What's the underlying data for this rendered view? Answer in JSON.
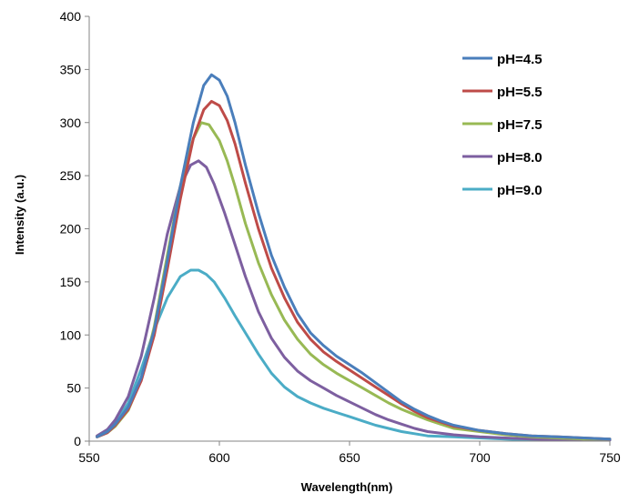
{
  "chart_data": {
    "type": "line",
    "title": "",
    "xlabel": "Wavelength(nm)",
    "ylabel": "Intensity  (a.u.)",
    "xlim": [
      550,
      750
    ],
    "ylim": [
      0,
      400
    ],
    "xticks": [
      550,
      600,
      650,
      700,
      750
    ],
    "yticks": [
      0,
      50,
      100,
      150,
      200,
      250,
      300,
      350,
      400
    ],
    "grid": false,
    "legend_position": "top-right",
    "series": [
      {
        "name": "pH=4.5",
        "color": "#4a7ebb",
        "points": [
          [
            553,
            4
          ],
          [
            557,
            9
          ],
          [
            560,
            16
          ],
          [
            565,
            32
          ],
          [
            570,
            60
          ],
          [
            575,
            105
          ],
          [
            580,
            170
          ],
          [
            585,
            240
          ],
          [
            590,
            300
          ],
          [
            594,
            335
          ],
          [
            597,
            345
          ],
          [
            600,
            340
          ],
          [
            603,
            325
          ],
          [
            606,
            300
          ],
          [
            610,
            260
          ],
          [
            615,
            215
          ],
          [
            620,
            175
          ],
          [
            625,
            145
          ],
          [
            630,
            120
          ],
          [
            635,
            102
          ],
          [
            640,
            90
          ],
          [
            645,
            80
          ],
          [
            650,
            72
          ],
          [
            655,
            64
          ],
          [
            660,
            55
          ],
          [
            665,
            46
          ],
          [
            670,
            37
          ],
          [
            675,
            30
          ],
          [
            680,
            24
          ],
          [
            685,
            19
          ],
          [
            690,
            15
          ],
          [
            700,
            10
          ],
          [
            710,
            7
          ],
          [
            720,
            5
          ],
          [
            730,
            4
          ],
          [
            740,
            3
          ],
          [
            750,
            2
          ]
        ]
      },
      {
        "name": "pH=5.5",
        "color": "#be4b48",
        "points": [
          [
            553,
            4
          ],
          [
            557,
            8
          ],
          [
            560,
            15
          ],
          [
            565,
            30
          ],
          [
            570,
            57
          ],
          [
            575,
            100
          ],
          [
            580,
            162
          ],
          [
            585,
            228
          ],
          [
            590,
            285
          ],
          [
            594,
            312
          ],
          [
            597,
            320
          ],
          [
            600,
            316
          ],
          [
            603,
            302
          ],
          [
            606,
            280
          ],
          [
            610,
            243
          ],
          [
            615,
            200
          ],
          [
            620,
            163
          ],
          [
            625,
            135
          ],
          [
            630,
            112
          ],
          [
            635,
            96
          ],
          [
            640,
            84
          ],
          [
            645,
            75
          ],
          [
            650,
            67
          ],
          [
            655,
            59
          ],
          [
            660,
            51
          ],
          [
            665,
            43
          ],
          [
            670,
            35
          ],
          [
            675,
            28
          ],
          [
            680,
            22
          ],
          [
            685,
            18
          ],
          [
            690,
            14
          ],
          [
            700,
            10
          ],
          [
            710,
            7
          ],
          [
            720,
            5
          ],
          [
            730,
            4
          ],
          [
            740,
            3
          ],
          [
            750,
            2
          ]
        ]
      },
      {
        "name": "pH=7.5",
        "color": "#98b954",
        "points": [
          [
            553,
            4
          ],
          [
            557,
            8
          ],
          [
            560,
            14
          ],
          [
            565,
            29
          ],
          [
            570,
            58
          ],
          [
            575,
            108
          ],
          [
            580,
            175
          ],
          [
            585,
            240
          ],
          [
            590,
            285
          ],
          [
            593,
            300
          ],
          [
            596,
            298
          ],
          [
            600,
            283
          ],
          [
            603,
            264
          ],
          [
            606,
            240
          ],
          [
            610,
            205
          ],
          [
            615,
            168
          ],
          [
            620,
            138
          ],
          [
            625,
            114
          ],
          [
            630,
            96
          ],
          [
            635,
            82
          ],
          [
            640,
            72
          ],
          [
            645,
            64
          ],
          [
            650,
            57
          ],
          [
            655,
            50
          ],
          [
            660,
            43
          ],
          [
            665,
            36
          ],
          [
            670,
            30
          ],
          [
            675,
            25
          ],
          [
            680,
            20
          ],
          [
            685,
            16
          ],
          [
            690,
            12
          ],
          [
            700,
            9
          ],
          [
            710,
            6
          ],
          [
            720,
            4
          ],
          [
            730,
            3
          ],
          [
            740,
            2
          ],
          [
            750,
            2
          ]
        ]
      },
      {
        "name": "pH=8.0",
        "color": "#7d5fa0",
        "points": [
          [
            553,
            5
          ],
          [
            557,
            11
          ],
          [
            560,
            20
          ],
          [
            565,
            42
          ],
          [
            570,
            80
          ],
          [
            575,
            135
          ],
          [
            580,
            195
          ],
          [
            585,
            240
          ],
          [
            589,
            260
          ],
          [
            592,
            264
          ],
          [
            595,
            258
          ],
          [
            598,
            242
          ],
          [
            602,
            215
          ],
          [
            606,
            185
          ],
          [
            610,
            155
          ],
          [
            615,
            122
          ],
          [
            620,
            97
          ],
          [
            625,
            79
          ],
          [
            630,
            66
          ],
          [
            635,
            57
          ],
          [
            640,
            50
          ],
          [
            645,
            43
          ],
          [
            650,
            37
          ],
          [
            655,
            31
          ],
          [
            660,
            25
          ],
          [
            665,
            20
          ],
          [
            670,
            16
          ],
          [
            675,
            12
          ],
          [
            680,
            9
          ],
          [
            690,
            6
          ],
          [
            700,
            4
          ],
          [
            710,
            3
          ],
          [
            720,
            2
          ],
          [
            735,
            1
          ],
          [
            750,
            1
          ]
        ]
      },
      {
        "name": "pH=9.0",
        "color": "#4bacc6",
        "points": [
          [
            553,
            4
          ],
          [
            557,
            9
          ],
          [
            560,
            17
          ],
          [
            565,
            36
          ],
          [
            570,
            68
          ],
          [
            575,
            105
          ],
          [
            580,
            135
          ],
          [
            585,
            155
          ],
          [
            589,
            161
          ],
          [
            592,
            161
          ],
          [
            595,
            157
          ],
          [
            598,
            150
          ],
          [
            602,
            135
          ],
          [
            606,
            118
          ],
          [
            610,
            102
          ],
          [
            615,
            82
          ],
          [
            620,
            64
          ],
          [
            625,
            51
          ],
          [
            630,
            42
          ],
          [
            635,
            36
          ],
          [
            640,
            31
          ],
          [
            645,
            27
          ],
          [
            650,
            23
          ],
          [
            655,
            19
          ],
          [
            660,
            15
          ],
          [
            665,
            12
          ],
          [
            670,
            9
          ],
          [
            675,
            7
          ],
          [
            680,
            5
          ],
          [
            690,
            4
          ],
          [
            700,
            3
          ],
          [
            710,
            2
          ],
          [
            720,
            1
          ],
          [
            735,
            1
          ],
          [
            750,
            1
          ]
        ]
      }
    ]
  }
}
